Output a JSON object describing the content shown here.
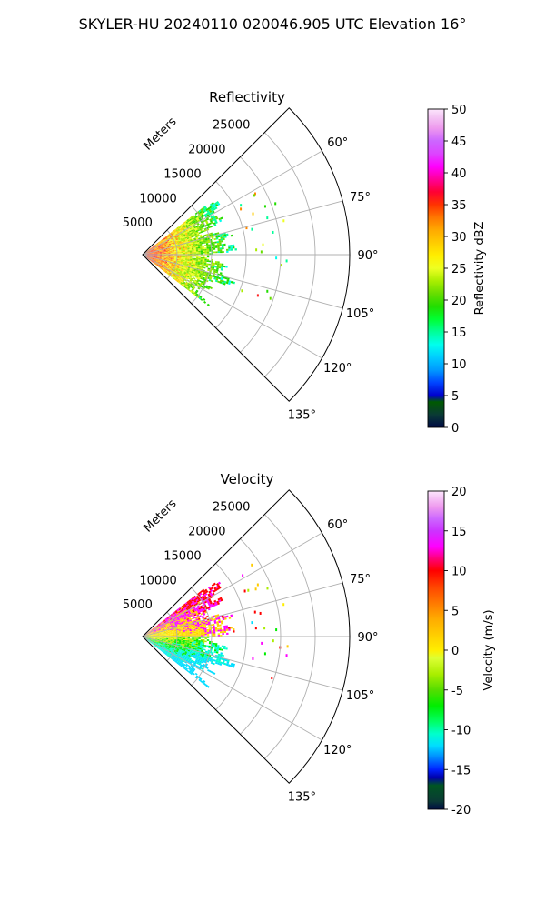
{
  "figure": {
    "suptitle": "SKYLER-HU  20240110  020046.905 UTC Elevation 16°"
  },
  "chart_data": [
    {
      "type": "polar-sector-radar",
      "title": "Reflectivity",
      "radial_label": "Meters",
      "r_ticks": [
        5000,
        10000,
        15000,
        20000,
        25000
      ],
      "r_max": 30000,
      "theta_range_deg": [
        45,
        135
      ],
      "theta_ticks_deg": [
        60,
        75,
        90,
        105,
        120,
        135
      ],
      "theta_tick_labels": [
        "60°",
        "75°",
        "90°",
        "105°",
        "120°",
        "135°"
      ],
      "grid": true,
      "colorbar": {
        "label": "Reflectivity dBZ",
        "min": 0,
        "max": 50,
        "ticks": [
          0,
          5,
          10,
          15,
          20,
          25,
          30,
          35,
          40,
          45,
          50
        ],
        "stops": [
          {
            "v": 0,
            "c": "#000a45"
          },
          {
            "v": 2,
            "c": "#0a3a35"
          },
          {
            "v": 4,
            "c": "#005a00"
          },
          {
            "v": 5,
            "c": "#0000cc"
          },
          {
            "v": 7,
            "c": "#0044ff"
          },
          {
            "v": 9,
            "c": "#0099ff"
          },
          {
            "v": 11,
            "c": "#00ccff"
          },
          {
            "v": 13,
            "c": "#00ffee"
          },
          {
            "v": 15,
            "c": "#00ff99"
          },
          {
            "v": 17,
            "c": "#00ff33"
          },
          {
            "v": 19,
            "c": "#22dd00"
          },
          {
            "v": 21,
            "c": "#66dd00"
          },
          {
            "v": 23,
            "c": "#aaee00"
          },
          {
            "v": 25,
            "c": "#eeff22"
          },
          {
            "v": 27,
            "c": "#ffee00"
          },
          {
            "v": 29,
            "c": "#ffcc00"
          },
          {
            "v": 31,
            "c": "#ffaa00"
          },
          {
            "v": 33,
            "c": "#ff7700"
          },
          {
            "v": 35,
            "c": "#ff3300"
          },
          {
            "v": 37,
            "c": "#ff0033"
          },
          {
            "v": 39,
            "c": "#ff0099"
          },
          {
            "v": 41,
            "c": "#ff00ff"
          },
          {
            "v": 43,
            "c": "#dd44ff"
          },
          {
            "v": 45,
            "c": "#cc66ff"
          },
          {
            "v": 47,
            "c": "#ee99ee"
          },
          {
            "v": 49,
            "c": "#f5ccf5"
          },
          {
            "v": 50,
            "c": "#fde6fd"
          }
        ]
      },
      "echo": {
        "theta_extent_deg": [
          52,
          128
        ],
        "r_extent_m": [
          0,
          14000
        ],
        "palette": [
          "#ff2222",
          "#ff8800",
          "#ffcc00",
          "#eeff22",
          "#aaee00",
          "#66dd00",
          "#22dd00",
          "#00ff99",
          "#00ffee"
        ]
      }
    },
    {
      "type": "polar-sector-radar",
      "title": "Velocity",
      "radial_label": "Meters",
      "r_ticks": [
        5000,
        10000,
        15000,
        20000,
        25000
      ],
      "r_max": 30000,
      "theta_range_deg": [
        45,
        135
      ],
      "theta_ticks_deg": [
        60,
        75,
        90,
        105,
        120,
        135
      ],
      "theta_tick_labels": [
        "60°",
        "75°",
        "90°",
        "105°",
        "120°",
        "135°"
      ],
      "grid": true,
      "colorbar": {
        "label": "Velocity (m/s)",
        "min": -20,
        "max": 20,
        "ticks": [
          -20,
          -15,
          -10,
          -5,
          0,
          5,
          10,
          15,
          20
        ],
        "stops": [
          {
            "v": -20,
            "c": "#000a45"
          },
          {
            "v": -19,
            "c": "#0a3a35"
          },
          {
            "v": -17,
            "c": "#005522"
          },
          {
            "v": -16,
            "c": "#0000aa"
          },
          {
            "v": -15,
            "c": "#0022ff"
          },
          {
            "v": -13.5,
            "c": "#0088ff"
          },
          {
            "v": -12,
            "c": "#00ddff"
          },
          {
            "v": -10.5,
            "c": "#00ffcc"
          },
          {
            "v": -9,
            "c": "#00ff66"
          },
          {
            "v": -7,
            "c": "#00ee00"
          },
          {
            "v": -5,
            "c": "#55dd00"
          },
          {
            "v": -3,
            "c": "#aaee00"
          },
          {
            "v": -1,
            "c": "#ddff33"
          },
          {
            "v": 0,
            "c": "#ffee00"
          },
          {
            "v": 2,
            "c": "#ffcc00"
          },
          {
            "v": 4,
            "c": "#ffaa00"
          },
          {
            "v": 6,
            "c": "#ff7700"
          },
          {
            "v": 8,
            "c": "#ff4400"
          },
          {
            "v": 10,
            "c": "#ff0000"
          },
          {
            "v": 11.5,
            "c": "#ff0077"
          },
          {
            "v": 13,
            "c": "#ff00ff"
          },
          {
            "v": 15,
            "c": "#cc33ff"
          },
          {
            "v": 16.5,
            "c": "#cc66ff"
          },
          {
            "v": 18,
            "c": "#ee99ee"
          },
          {
            "v": 20,
            "c": "#fde6fd"
          }
        ]
      },
      "echo": {
        "theta_extent_deg": [
          52,
          128
        ],
        "r_extent_m": [
          0,
          14000
        ],
        "palette": [
          "#ff0000",
          "#ff00ff",
          "#ffcc00",
          "#ffee00",
          "#aaee00",
          "#00ee00",
          "#00ffcc",
          "#00ddff"
        ]
      }
    }
  ]
}
